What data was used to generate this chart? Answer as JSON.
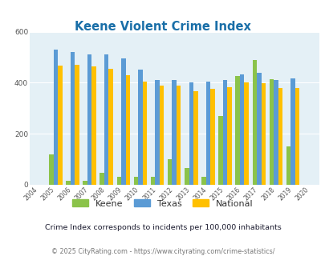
{
  "title": "Keene Violent Crime Index",
  "years": [
    2004,
    2005,
    2006,
    2007,
    2008,
    2009,
    2010,
    2011,
    2012,
    2013,
    2014,
    2015,
    2016,
    2017,
    2018,
    2019,
    2020
  ],
  "keene": [
    0,
    120,
    15,
    15,
    48,
    32,
    32,
    32,
    100,
    65,
    32,
    270,
    425,
    490,
    415,
    150,
    0
  ],
  "texas": [
    0,
    530,
    520,
    510,
    510,
    495,
    452,
    410,
    410,
    400,
    405,
    412,
    432,
    440,
    410,
    418,
    0
  ],
  "national": [
    0,
    468,
    470,
    465,
    455,
    428,
    404,
    390,
    390,
    367,
    375,
    383,
    400,
    398,
    378,
    378,
    0
  ],
  "keene_color": "#8bc34a",
  "texas_color": "#5b9bd5",
  "national_color": "#ffc000",
  "plot_bg": "#e4f0f6",
  "ylim": [
    0,
    600
  ],
  "yticks": [
    0,
    200,
    400,
    600
  ],
  "legend_labels": [
    "Keene",
    "Texas",
    "National"
  ],
  "footnote1": "Crime Index corresponds to incidents per 100,000 inhabitants",
  "footnote2": "© 2025 CityRating.com - https://www.cityrating.com/crime-statistics/",
  "title_color": "#1a6fa8",
  "footnote1_color": "#1a1a2e",
  "footnote2_color": "#777777",
  "tick_color": "#555555",
  "legend_text_color": "#333333"
}
